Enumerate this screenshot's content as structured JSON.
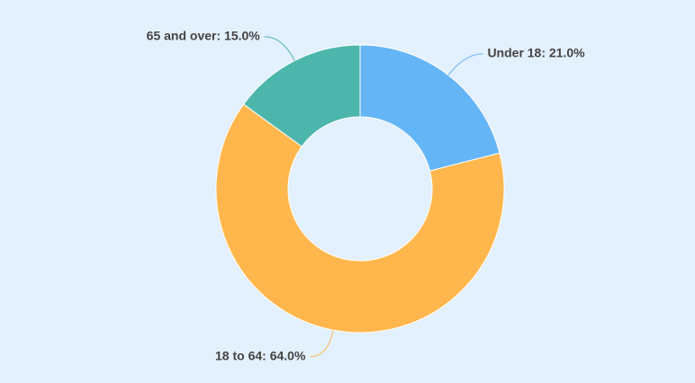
{
  "chart_data": {
    "type": "donut",
    "values": [
      21,
      64,
      15
    ],
    "value_labels": [
      "Under 18: 21.0%",
      "18 to 64: 64.0%",
      "65 and over: 15.0%"
    ],
    "colors": [
      "#64b5f6",
      "#ffb74d",
      "#4db6ac"
    ]
  }
}
